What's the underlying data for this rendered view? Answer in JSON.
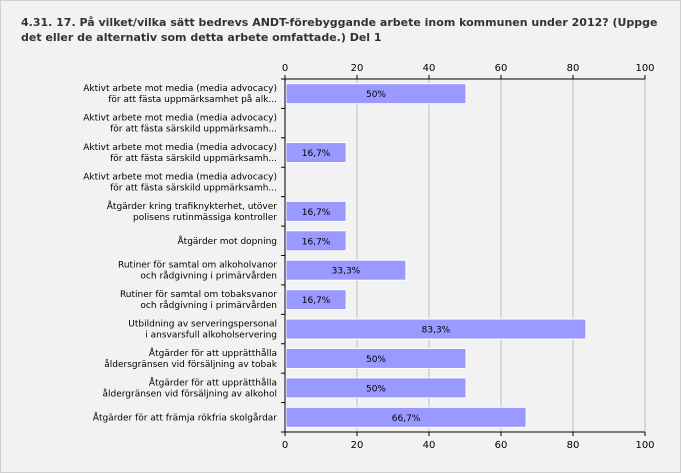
{
  "chart_data": {
    "type": "bar",
    "orientation": "horizontal",
    "title": "4.31. 17. På vilket/vilka sätt bedrevs ANDT-förebyggande arbete inom kommunen under 2012? (Uppge det eller de alternativ som detta arbete omfattade.) Del 1",
    "xlim": [
      0,
      100
    ],
    "ticks": [
      0,
      20,
      40,
      60,
      80,
      100
    ],
    "grid": true,
    "bar_color": "#9999ff",
    "categories": [
      [
        "Aktivt arbete mot media (media advocacy)",
        "för att fästa uppmärksamhet på alk..."
      ],
      [
        "Aktivt arbete mot media (media advocacy)",
        "för att fästa särskild uppmärksamh..."
      ],
      [
        "Aktivt arbete mot media (media advocacy)",
        "för att fästa särskild uppmärksamh..."
      ],
      [
        "Aktivt arbete mot media (media advocacy)",
        "för att fästa särskild uppmärksamh..."
      ],
      [
        "Åtgärder kring trafiknykterhet, utöver",
        "polisens rutinmässiga kontroller"
      ],
      [
        "Åtgärder mot dopning"
      ],
      [
        "Rutiner för samtal om alkoholvanor",
        "och rådgivning i primärvården"
      ],
      [
        "Rutiner för samtal om tobaksvanor",
        "och rådgivning i primärvården"
      ],
      [
        "Utbildning av serveringspersonal",
        "i ansvarsfull alkoholservering"
      ],
      [
        "Åtgärder för att upprätthålla",
        "åldersgränsen vid försäljning av tobak"
      ],
      [
        "Åtgärder för att upprätthålla",
        "åldergränsen vid försäljning av alkohol"
      ],
      [
        "Åtgärder för att främja rökfria skolgårdar"
      ]
    ],
    "values": [
      50,
      0,
      16.7,
      0,
      16.7,
      16.7,
      33.3,
      16.7,
      83.3,
      50,
      50,
      66.7
    ],
    "value_labels": [
      "50%",
      "",
      "16,7%",
      "",
      "16,7%",
      "16,7%",
      "33,3%",
      "16,7%",
      "83,3%",
      "50%",
      "50%",
      "66,7%"
    ]
  }
}
